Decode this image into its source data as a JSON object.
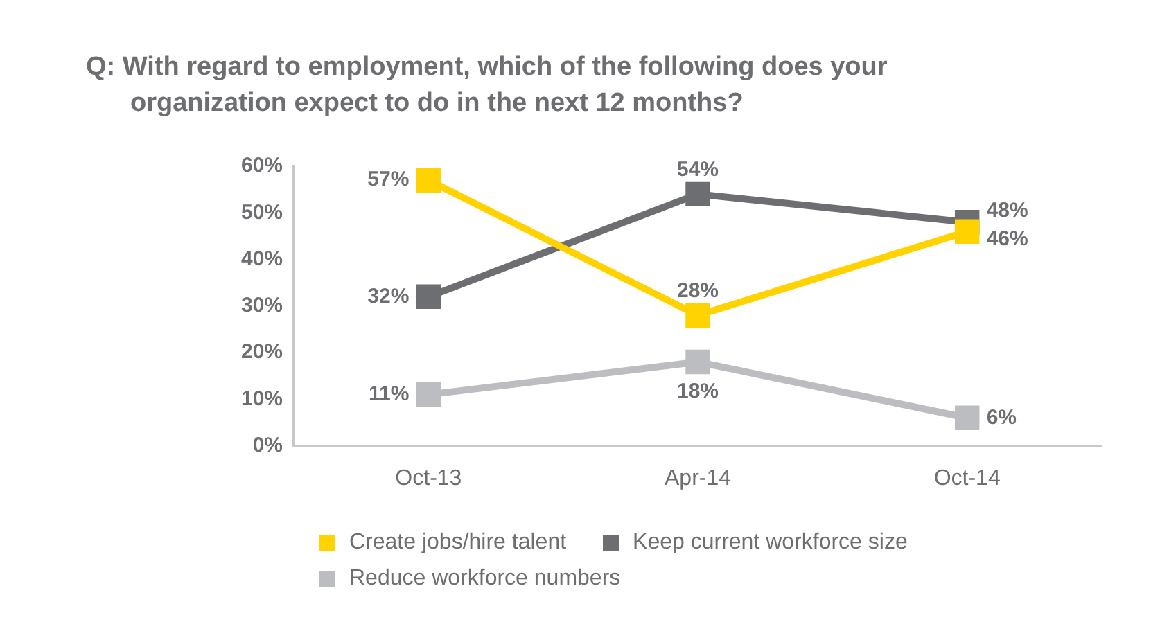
{
  "chart_data": {
    "type": "line",
    "title": "Q:  With regard to employment, which of the following does your organization expect to do in the next 12 months?",
    "categories": [
      "Oct-13",
      "Apr-14",
      "Oct-14"
    ],
    "series": [
      {
        "name": "Create jobs/hire talent",
        "color": "#ffd200",
        "values": [
          57,
          28,
          46
        ],
        "value_labels": [
          "57%",
          "28%",
          "46%"
        ]
      },
      {
        "name": "Keep current workforce size",
        "color": "#6d6e71",
        "values": [
          32,
          54,
          48
        ],
        "value_labels": [
          "32%",
          "54%",
          "48%"
        ]
      },
      {
        "name": "Reduce workforce numbers",
        "color": "#bcbdc0",
        "values": [
          11,
          18,
          6
        ],
        "value_labels": [
          "11%",
          "18%",
          "6%"
        ]
      }
    ],
    "ylim": [
      0,
      60
    ],
    "yticks": [
      {
        "value": 0,
        "label": "0%"
      },
      {
        "value": 10,
        "label": "10%"
      },
      {
        "value": 20,
        "label": "20%"
      },
      {
        "value": 30,
        "label": "30%"
      },
      {
        "value": 40,
        "label": "40%"
      },
      {
        "value": 50,
        "label": "50%"
      },
      {
        "value": 60,
        "label": "60%"
      }
    ],
    "grid": false,
    "legend": "bottom",
    "marker": "square",
    "line_style": "solid"
  }
}
